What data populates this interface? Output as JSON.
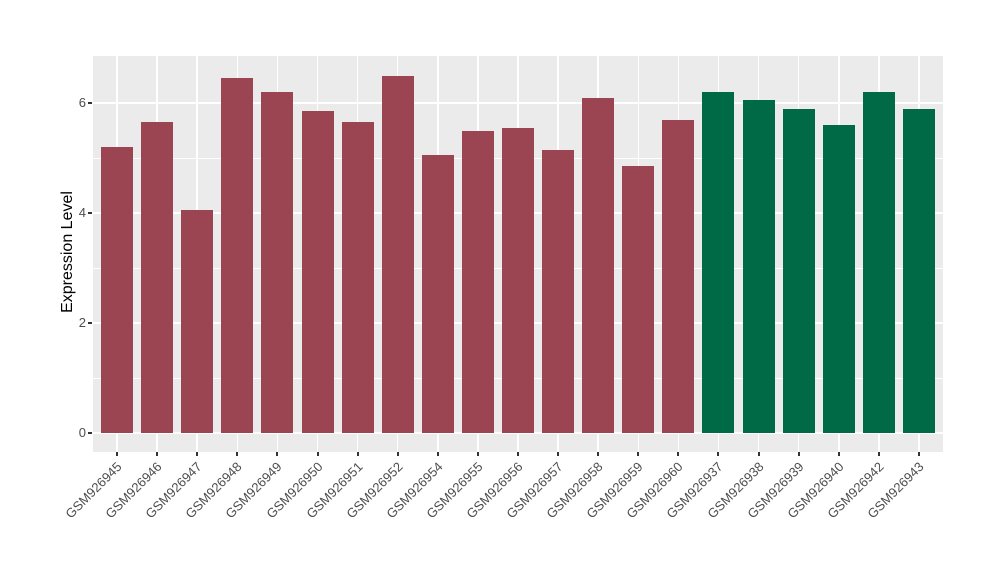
{
  "chart_data": {
    "type": "bar",
    "title": "",
    "xlabel": "",
    "ylabel": "Expression Level",
    "categories": [
      "GSM926945",
      "GSM926946",
      "GSM926947",
      "GSM926948",
      "GSM926949",
      "GSM926950",
      "GSM926951",
      "GSM926952",
      "GSM926954",
      "GSM926955",
      "GSM926956",
      "GSM926957",
      "GSM926958",
      "GSM926959",
      "GSM926960",
      "GSM926937",
      "GSM926938",
      "GSM926939",
      "GSM926940",
      "GSM926942",
      "GSM926943"
    ],
    "values": [
      5.2,
      5.65,
      4.05,
      6.45,
      6.2,
      5.85,
      5.65,
      6.5,
      5.05,
      5.5,
      5.55,
      5.15,
      6.1,
      4.85,
      5.7,
      6.2,
      6.05,
      5.9,
      5.6,
      6.2,
      5.9
    ],
    "groups": [
      "red",
      "red",
      "red",
      "red",
      "red",
      "red",
      "red",
      "red",
      "red",
      "red",
      "red",
      "red",
      "red",
      "red",
      "red",
      "green",
      "green",
      "green",
      "green",
      "green",
      "green"
    ],
    "palette": {
      "red": "#9B4452",
      "green": "#006946"
    },
    "yticks": [
      0,
      2,
      4,
      6
    ],
    "minor_yticks": [
      1,
      3,
      5
    ],
    "ylim": [
      -0.35,
      6.85
    ],
    "grid": true,
    "legend": "none",
    "x_label_rotation_deg": 45,
    "panel_bg": "#EBEBEB",
    "grid_color": "#FFFFFF",
    "axis_text_color": "#4D4D4D",
    "axis_title_color": "#000000",
    "tick_mark_color": "#333333"
  }
}
